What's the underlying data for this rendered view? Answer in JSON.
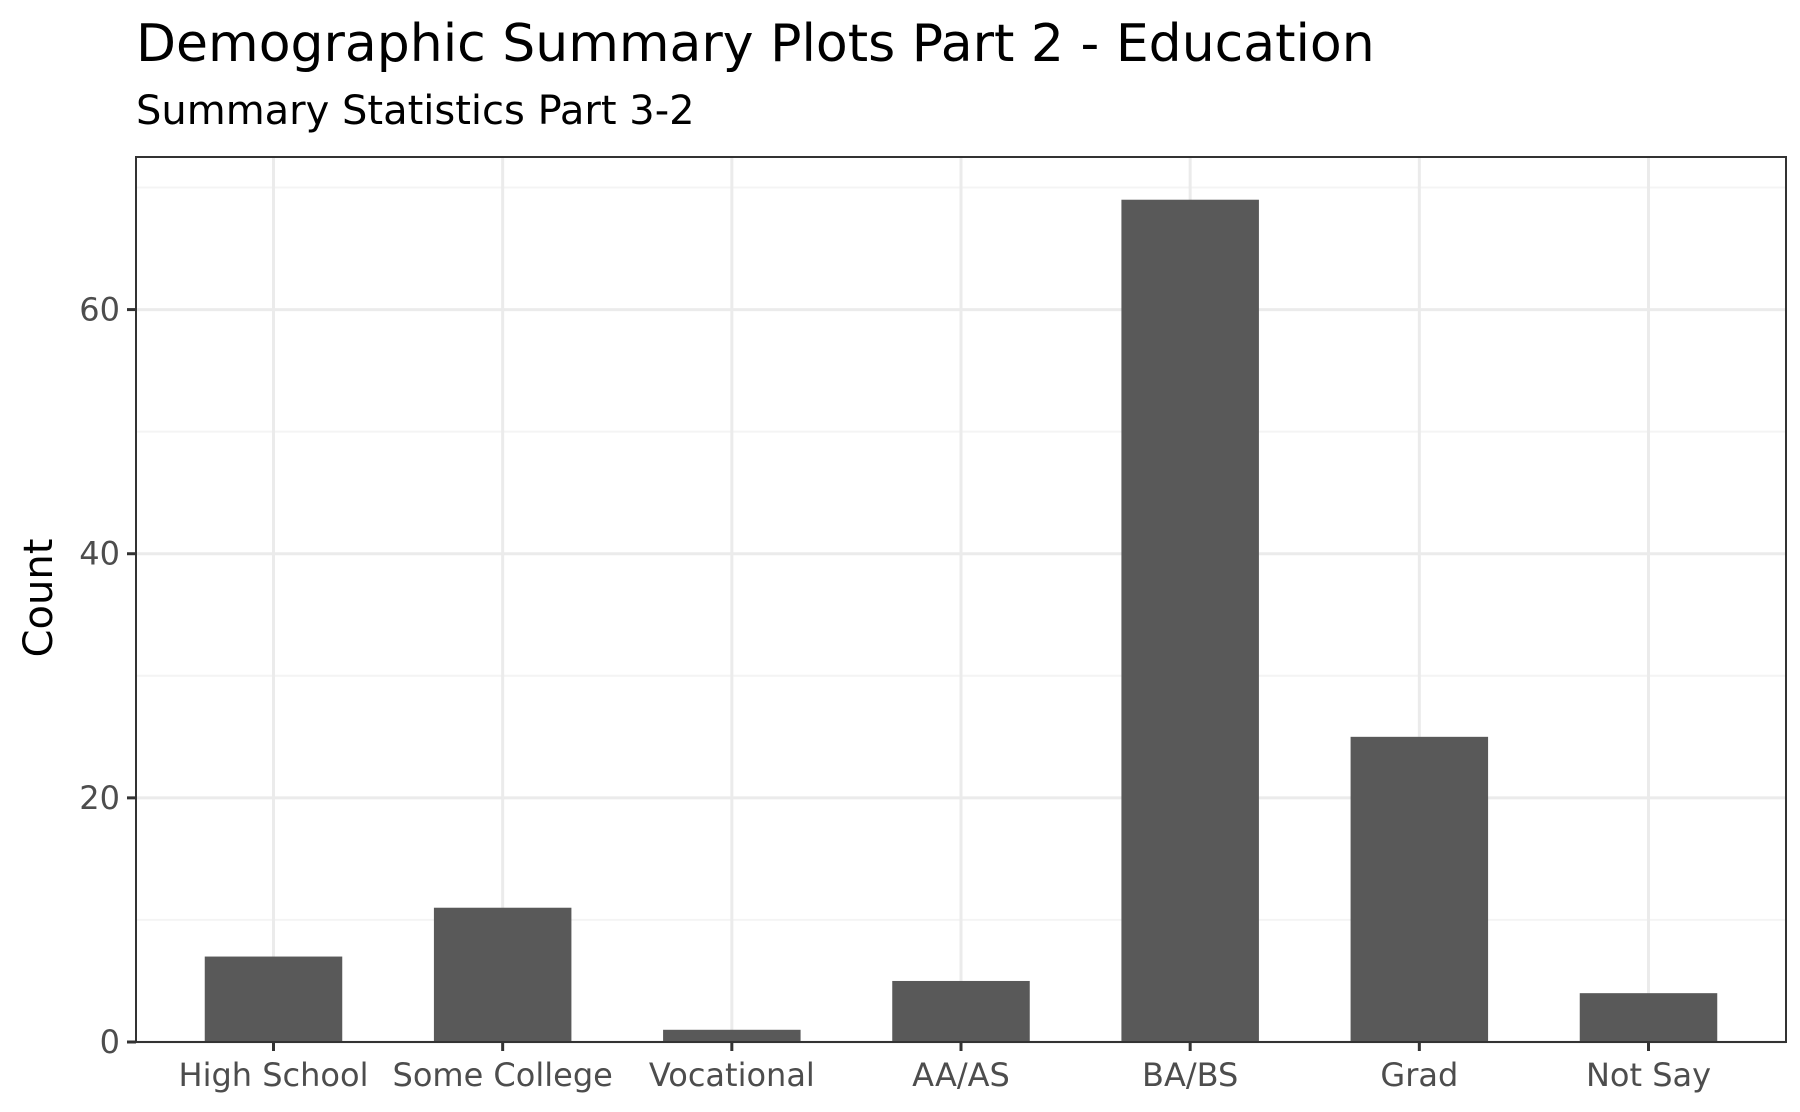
{
  "chart_data": {
    "type": "bar",
    "title": "Demographic Summary Plots Part 2 - Education",
    "subtitle": "Summary Statistics Part 3-2",
    "xlabel": "",
    "ylabel": "Count",
    "categories": [
      "High School",
      "Some College",
      "Vocational",
      "AA/AS",
      "BA/BS",
      "Grad",
      "Not Say"
    ],
    "values": [
      7,
      11,
      1,
      5,
      69,
      25,
      4
    ],
    "ylim": [
      0,
      72.5
    ],
    "yticks": [
      0,
      20,
      40,
      60
    ],
    "grid": true,
    "legend": "none",
    "colors": {
      "bar": "#595959",
      "grid_major": "#ebebeb",
      "grid_minor": "#f4f4f4",
      "panel_border": "#333333",
      "tick_text": "#4d4d4d"
    }
  }
}
